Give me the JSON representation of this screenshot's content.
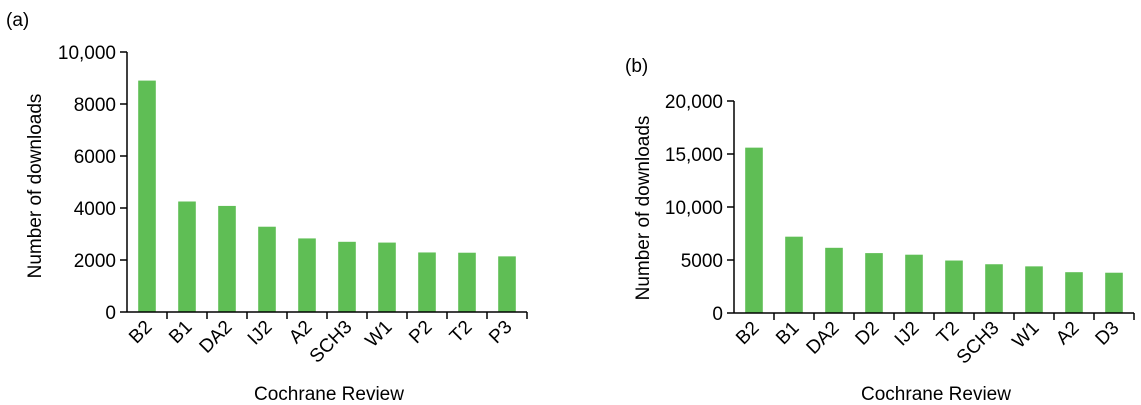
{
  "colors": {
    "bar": "#5fbe55",
    "axis": "#000000"
  },
  "chart_data": [
    {
      "type": "bar",
      "panel_label": "(a)",
      "xlabel": "Cochrane Review",
      "ylabel": "Number of downloads",
      "ylim": [
        0,
        10000
      ],
      "yticks": [
        0,
        2000,
        4000,
        6000,
        8000,
        10000
      ],
      "ytick_labels": [
        "0",
        "2000",
        "4000",
        "6000",
        "8000",
        "10,000"
      ],
      "categories": [
        "B2",
        "B1",
        "DA2",
        "IJ2",
        "A2",
        "SCH3",
        "W1",
        "P2",
        "T2",
        "P3"
      ],
      "values": [
        8900,
        4250,
        4080,
        3280,
        2830,
        2700,
        2670,
        2290,
        2280,
        2140
      ],
      "grid": false,
      "legend": "none"
    },
    {
      "type": "bar",
      "panel_label": "(b)",
      "xlabel": "Cochrane Review",
      "ylabel": "Number of downloads",
      "ylim": [
        0,
        20000
      ],
      "yticks": [
        0,
        5000,
        10000,
        15000,
        20000
      ],
      "ytick_labels": [
        "0",
        "5000",
        "10,000",
        "15,000",
        "20,000"
      ],
      "categories": [
        "B2",
        "B1",
        "DA2",
        "D2",
        "IJ2",
        "T2",
        "SCH3",
        "W1",
        "A2",
        "D3"
      ],
      "values": [
        15600,
        7200,
        6150,
        5650,
        5500,
        4950,
        4600,
        4400,
        3850,
        3800
      ],
      "grid": false,
      "legend": "none"
    }
  ]
}
